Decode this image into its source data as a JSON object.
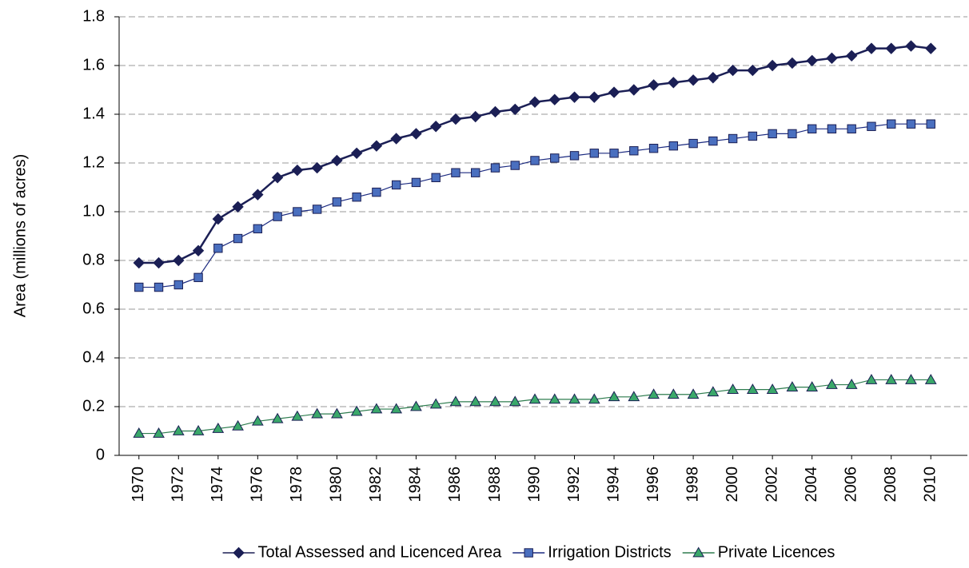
{
  "chart_data": {
    "type": "line",
    "y_label": "Area (millions of acres)",
    "x": [
      1970,
      1971,
      1972,
      1973,
      1974,
      1975,
      1976,
      1977,
      1978,
      1979,
      1980,
      1981,
      1982,
      1983,
      1984,
      1985,
      1986,
      1987,
      1988,
      1989,
      1990,
      1991,
      1992,
      1993,
      1994,
      1995,
      1996,
      1997,
      1998,
      1999,
      2000,
      2001,
      2002,
      2003,
      2004,
      2005,
      2006,
      2007,
      2008,
      2009,
      2010
    ],
    "xlim": [
      1969,
      2011
    ],
    "xticks": [
      1970,
      1972,
      1974,
      1976,
      1978,
      1980,
      1982,
      1984,
      1986,
      1988,
      1990,
      1992,
      1994,
      1996,
      1998,
      2000,
      2002,
      2004,
      2006,
      2008,
      2010
    ],
    "ylim": [
      0,
      1.8
    ],
    "yticks": [
      0,
      0.2,
      0.4,
      0.6,
      0.8,
      {
        "value": 1,
        "label": "1.0"
      },
      1.2,
      1.4,
      1.6,
      1.8
    ],
    "grid": true,
    "legend": "bottom",
    "series": [
      {
        "name": "Total Assessed and Licenced Area",
        "color": "#1b1f55",
        "marker": "diamond",
        "values": [
          0.79,
          0.79,
          0.8,
          0.84,
          0.97,
          1.02,
          1.07,
          1.14,
          1.17,
          1.18,
          1.21,
          1.24,
          1.27,
          1.3,
          1.32,
          1.35,
          1.38,
          1.39,
          1.41,
          1.42,
          1.45,
          1.46,
          1.47,
          1.47,
          1.49,
          1.5,
          1.52,
          1.53,
          1.54,
          1.55,
          1.58,
          1.58,
          1.6,
          1.61,
          1.62,
          1.63,
          1.64,
          1.67,
          1.67,
          1.68,
          1.67
        ]
      },
      {
        "name": "Irrigation Districts",
        "color": "#4a6fbf",
        "marker": "square",
        "values": [
          0.69,
          0.69,
          0.7,
          0.73,
          0.85,
          0.89,
          0.93,
          0.98,
          1.0,
          1.01,
          1.04,
          1.06,
          1.08,
          1.11,
          1.12,
          1.14,
          1.16,
          1.16,
          1.18,
          1.19,
          1.21,
          1.22,
          1.23,
          1.24,
          1.24,
          1.25,
          1.26,
          1.27,
          1.28,
          1.29,
          1.3,
          1.31,
          1.32,
          1.32,
          1.34,
          1.34,
          1.34,
          1.35,
          1.36,
          1.36,
          1.36
        ]
      },
      {
        "name": "Private Licences",
        "color": "#3aa86a",
        "marker": "triangle",
        "values": [
          0.09,
          0.09,
          0.1,
          0.1,
          0.11,
          0.12,
          0.14,
          0.15,
          0.16,
          0.17,
          0.17,
          0.18,
          0.19,
          0.19,
          0.2,
          0.21,
          0.22,
          0.22,
          0.22,
          0.22,
          0.23,
          0.23,
          0.23,
          0.23,
          0.24,
          0.24,
          0.25,
          0.25,
          0.25,
          0.26,
          0.27,
          0.27,
          0.27,
          0.28,
          0.28,
          0.29,
          0.29,
          0.31,
          0.31,
          0.31,
          0.31
        ]
      }
    ]
  }
}
